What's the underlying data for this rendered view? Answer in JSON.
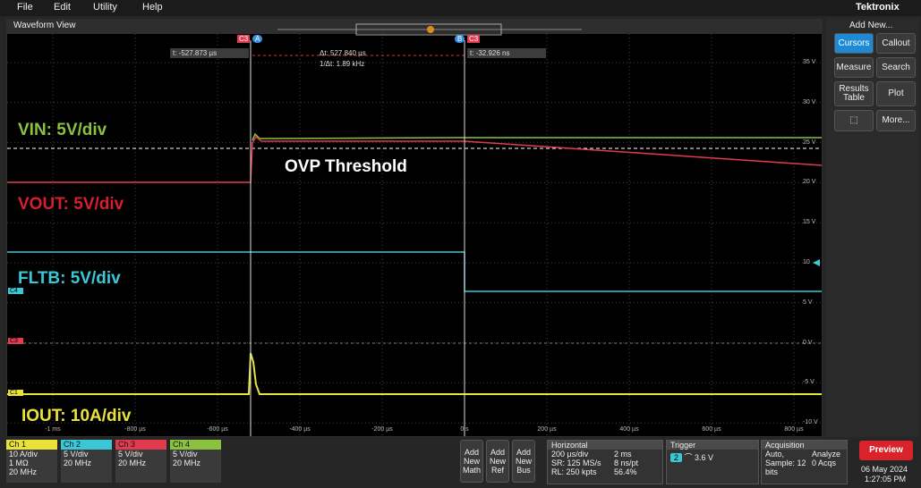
{
  "menu": [
    "File",
    "Edit",
    "Utility",
    "Help"
  ],
  "brand": "Tektronix",
  "waveform_view": {
    "title": "Waveform View",
    "y_labels": [
      "35 V",
      "30 V",
      "25 V",
      "20 V",
      "15 V",
      "10",
      "5 V",
      "0 V",
      "-5 V",
      "-10 V"
    ],
    "x_labels": [
      "-1 ms",
      "-800 µs",
      "-600 µs",
      "-400 µs",
      "-200 µs",
      "0 s",
      "200 µs",
      "400 µs",
      "600 µs",
      "800 µs"
    ],
    "cursors": {
      "a_channel": "C3",
      "a_name": "A",
      "b_name": "B",
      "b_channel": "C3",
      "a_readout": "t: -527.873 µs",
      "delta_t": "Δt: 527.840 µs",
      "inverse_delta_t": "1/Δt: 1.89 kHz",
      "b_readout": "t: -32.926 ns"
    },
    "annotations": {
      "vin": "VIN: 5V/div",
      "ovp": "OVP Threshold",
      "vout": "VOUT: 5V/div",
      "fltb": "FLTB: 5V/div",
      "iout": "IOUT: 10A/div"
    },
    "channel_markers": [
      "C4",
      "C3",
      "C1"
    ]
  },
  "sidebar": {
    "title": "Add New...",
    "buttons": [
      "Cursors",
      "Callout",
      "Measure",
      "Search",
      "Results Table",
      "Plot",
      "More..."
    ]
  },
  "bottom": {
    "channels": [
      {
        "name": "Ch 1",
        "lines": [
          "10 A/div",
          "1 MΩ",
          "20 MHz"
        ]
      },
      {
        "name": "Ch 2",
        "lines": [
          "5 V/div",
          "20 MHz"
        ]
      },
      {
        "name": "Ch 3",
        "lines": [
          "5 V/div",
          "20 MHz"
        ]
      },
      {
        "name": "Ch 4",
        "lines": [
          "5 V/div",
          "20 MHz"
        ]
      }
    ],
    "add_new": [
      "Add New Math",
      "Add New Ref",
      "Add New Bus"
    ],
    "horizontal": {
      "title": "Horizontal",
      "cells": [
        "200 µs/div",
        "2 ms",
        "SR: 125 MS/s",
        "8 ns/pt",
        "RL: 250 kpts",
        "56.4%"
      ]
    },
    "trigger": {
      "title": "Trigger",
      "source": "2",
      "level": "3.6 V"
    },
    "acquisition": {
      "title": "Acquisition",
      "cells": [
        "Auto,",
        "Analyze",
        "Sample: 12 bits",
        "0 Acqs"
      ]
    },
    "preview": "Preview",
    "date": "06 May 2024",
    "time": "1:27:05 PM"
  }
}
